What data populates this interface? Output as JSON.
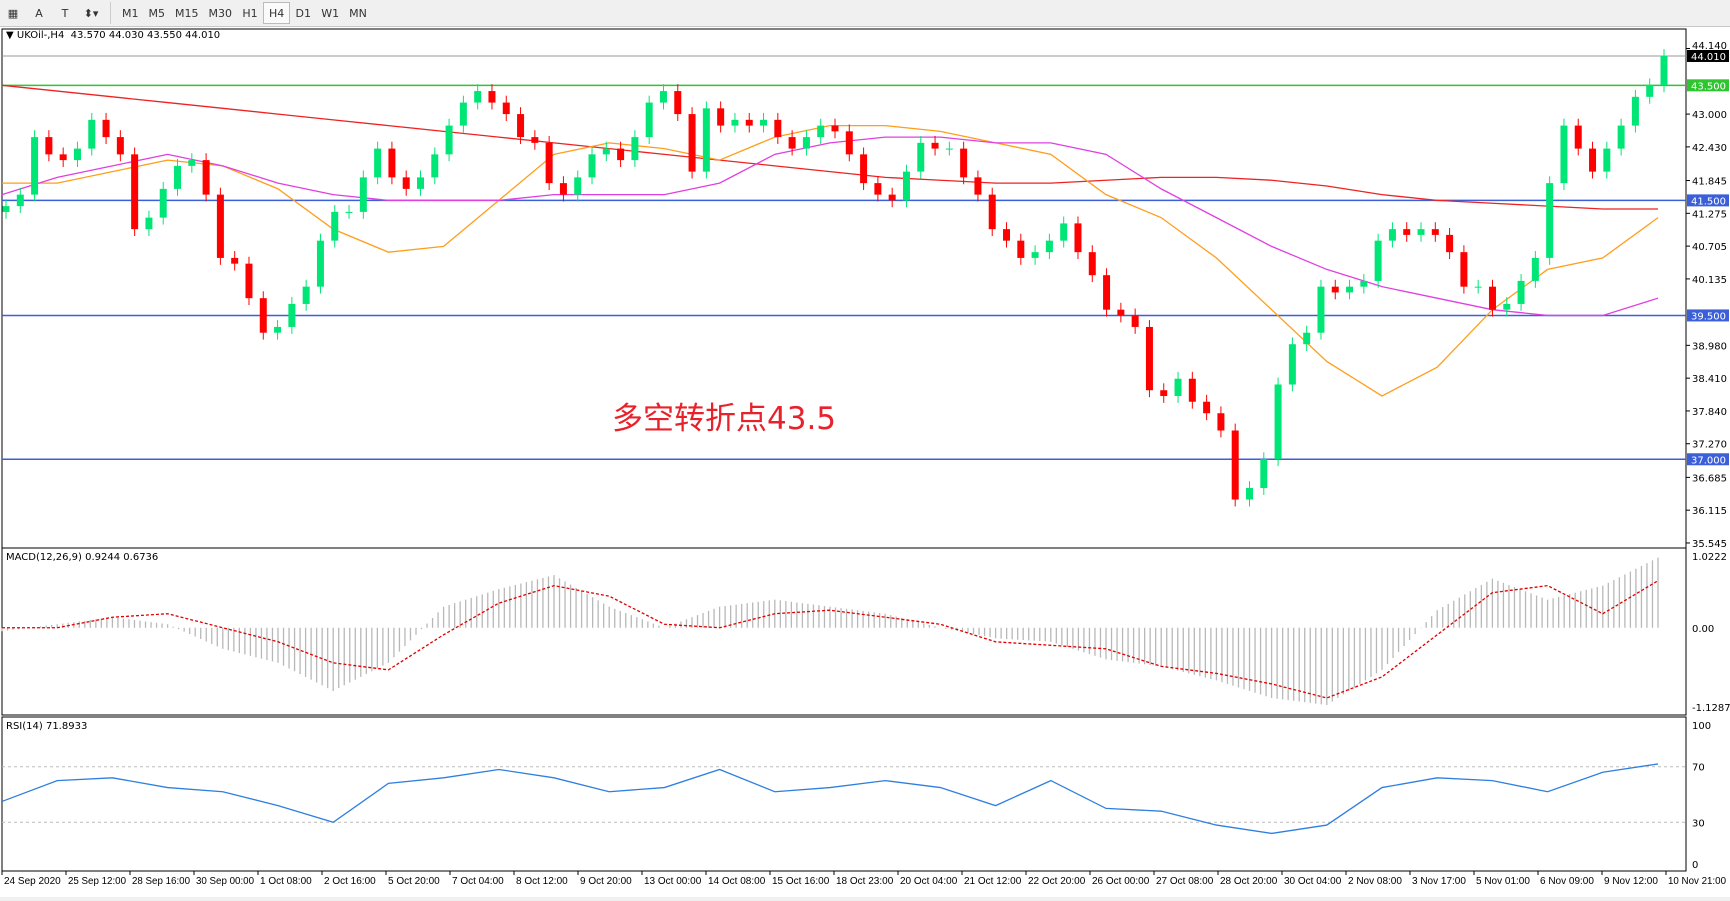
{
  "toolbar": {
    "tools": [
      "A",
      "T"
    ],
    "timeframes": [
      "M1",
      "M5",
      "M15",
      "M30",
      "H1",
      "H4",
      "D1",
      "W1",
      "MN"
    ],
    "active": "H4"
  },
  "main": {
    "title": "UKOil-,H4",
    "ohlc": "43.570 44.030 43.550 44.010",
    "current_price": "44.010",
    "annotation": "多空转折点43.5",
    "price_ticks": [
      "44.140",
      "43.000",
      "42.430",
      "41.845",
      "41.275",
      "40.705",
      "40.135",
      "38.980",
      "38.410",
      "37.840",
      "37.270",
      "36.685",
      "36.115",
      "35.545"
    ],
    "levels": [
      {
        "value": 43.5,
        "label": "43.500",
        "color": "#2ec52e"
      },
      {
        "value": 41.5,
        "label": "41.500",
        "color": "#3a5fd8"
      },
      {
        "value": 39.5,
        "label": "39.500",
        "color": "#3a5fd8"
      },
      {
        "value": 37.0,
        "label": "37.000",
        "color": "#3a5fd8"
      }
    ],
    "colors": {
      "bull": "#00e676",
      "bear": "#ff0000",
      "ma_slow": "#ee2222",
      "ma_fast": "#ff9e1b",
      "ma_mid": "#e040e0"
    },
    "closes": [
      41.4,
      41.6,
      42.6,
      42.3,
      42.2,
      42.4,
      42.9,
      42.6,
      42.3,
      41.0,
      41.2,
      41.7,
      42.1,
      42.2,
      41.6,
      40.5,
      40.4,
      39.8,
      39.2,
      39.3,
      39.7,
      40.0,
      40.8,
      41.3,
      41.3,
      41.9,
      42.4,
      41.9,
      41.7,
      41.9,
      42.3,
      42.8,
      43.2,
      43.4,
      43.2,
      43.0,
      42.6,
      42.5,
      41.8,
      41.6,
      41.9,
      42.3,
      42.4,
      42.2,
      42.6,
      43.2,
      43.4,
      43.0,
      42.0,
      43.1,
      42.8,
      42.9,
      42.8,
      42.9,
      42.6,
      42.4,
      42.6,
      42.8,
      42.7,
      42.3,
      41.8,
      41.6,
      41.5,
      42.0,
      42.5,
      42.4,
      42.4,
      41.9,
      41.6,
      41.0,
      40.8,
      40.5,
      40.6,
      40.8,
      41.1,
      40.6,
      40.2,
      39.6,
      39.5,
      39.3,
      38.2,
      38.1,
      38.4,
      38.0,
      37.8,
      37.5,
      36.3,
      36.5,
      37.0,
      38.3,
      39.0,
      39.2,
      40.0,
      39.9,
      40.0,
      40.1,
      40.8,
      41.0,
      40.9,
      41.0,
      40.9,
      40.6,
      40.0,
      40.0,
      39.6,
      39.7,
      40.1,
      40.5,
      41.8,
      42.8,
      42.4,
      42.0,
      42.4,
      42.8,
      43.3,
      43.5,
      44.01
    ],
    "ma_slow": [
      43.5,
      43.4,
      43.3,
      43.2,
      43.1,
      43.0,
      42.9,
      42.8,
      42.7,
      42.6,
      42.5,
      42.4,
      42.3,
      42.2,
      42.1,
      42.0,
      41.9,
      41.85,
      41.8,
      41.8,
      41.85,
      41.9,
      41.9,
      41.85,
      41.75,
      41.6,
      41.5,
      41.45,
      41.4,
      41.35,
      41.35
    ],
    "ma_fast": [
      41.8,
      41.8,
      42.0,
      42.2,
      42.1,
      41.7,
      41.0,
      40.6,
      40.7,
      41.5,
      42.3,
      42.5,
      42.4,
      42.2,
      42.6,
      42.8,
      42.8,
      42.7,
      42.5,
      42.3,
      41.6,
      41.2,
      40.5,
      39.6,
      38.7,
      38.1,
      38.6,
      39.6,
      40.3,
      40.5,
      41.2
    ],
    "ma_mid": [
      41.6,
      41.9,
      42.1,
      42.3,
      42.1,
      41.8,
      41.6,
      41.5,
      41.5,
      41.5,
      41.6,
      41.6,
      41.6,
      41.8,
      42.3,
      42.5,
      42.6,
      42.6,
      42.5,
      42.5,
      42.3,
      41.7,
      41.2,
      40.7,
      40.3,
      40.0,
      39.8,
      39.6,
      39.5,
      39.5,
      39.8
    ]
  },
  "macd": {
    "title": "MACD(12,26,9) 0.9244 0.6736",
    "ticks": [
      "1.0222",
      "0.00",
      "-1.1287"
    ],
    "histogram": [
      -0.05,
      0.05,
      0.15,
      0.05,
      -0.3,
      -0.5,
      -0.9,
      -0.5,
      0.3,
      0.55,
      0.75,
      0.3,
      0,
      0.3,
      0.4,
      0.3,
      0.2,
      0,
      -0.15,
      -0.2,
      -0.45,
      -0.55,
      -0.75,
      -1.0,
      -1.1,
      -0.6,
      0.25,
      0.7,
      0.4,
      0.6,
      1.0
    ],
    "signal": [
      0,
      0,
      0.15,
      0.2,
      0,
      -0.2,
      -0.5,
      -0.6,
      -0.1,
      0.35,
      0.6,
      0.45,
      0.05,
      0,
      0.2,
      0.25,
      0.15,
      0.05,
      -0.2,
      -0.25,
      -0.3,
      -0.55,
      -0.65,
      -0.8,
      -1.0,
      -0.7,
      -0.1,
      0.5,
      0.6,
      0.2,
      0.67
    ]
  },
  "rsi": {
    "title": "RSI(14) 71.8933",
    "ticks": [
      "100",
      "70",
      "30",
      "0"
    ],
    "values": [
      45,
      60,
      62,
      55,
      52,
      42,
      30,
      58,
      62,
      68,
      62,
      52,
      55,
      68,
      52,
      55,
      60,
      55,
      42,
      60,
      40,
      38,
      28,
      22,
      28,
      55,
      62,
      60,
      52,
      66,
      72
    ]
  },
  "time_axis": [
    "24 Sep 2020",
    "25 Sep 12:00",
    "28 Sep 16:00",
    "30 Sep 00:00",
    "1 Oct 08:00",
    "2 Oct 16:00",
    "5 Oct 20:00",
    "7 Oct 04:00",
    "8 Oct 12:00",
    "9 Oct 20:00",
    "13 Oct 00:00",
    "14 Oct 08:00",
    "15 Oct 16:00",
    "18 Oct 23:00",
    "20 Oct 04:00",
    "21 Oct 12:00",
    "22 Oct 20:00",
    "26 Oct 00:00",
    "27 Oct 08:00",
    "28 Oct 20:00",
    "30 Oct 04:00",
    "2 Nov 08:00",
    "3 Nov 17:00",
    "5 Nov 01:00",
    "6 Nov 09:00",
    "9 Nov 12:00",
    "10 Nov 21:00"
  ]
}
